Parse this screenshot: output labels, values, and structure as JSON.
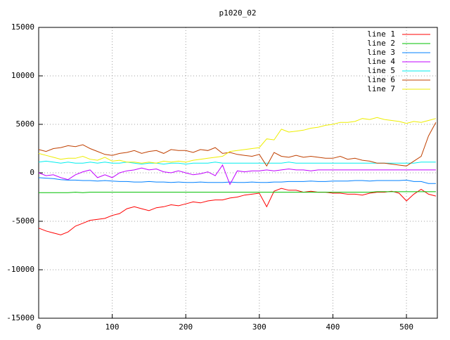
{
  "chart_data": {
    "type": "line",
    "title": "p1020_02",
    "x": [
      0,
      10,
      20,
      30,
      40,
      50,
      60,
      70,
      80,
      90,
      100,
      110,
      120,
      130,
      140,
      150,
      160,
      170,
      180,
      190,
      200,
      210,
      220,
      230,
      240,
      250,
      260,
      270,
      280,
      290,
      300,
      310,
      320,
      330,
      340,
      350,
      360,
      370,
      380,
      390,
      400,
      410,
      420,
      430,
      440,
      450,
      460,
      470,
      480,
      490,
      500,
      510,
      520,
      530,
      540
    ],
    "xlim": [
      0,
      542
    ],
    "xticks": [
      0,
      100,
      200,
      300,
      400,
      500
    ],
    "ylim": [
      -15000,
      15000
    ],
    "yticks": [
      -15000,
      -10000,
      -5000,
      0,
      5000,
      10000,
      15000
    ],
    "grid": true,
    "legend": "top-right",
    "series": [
      {
        "name": "line 1",
        "color": "#ff0000",
        "values": [
          -5700,
          -6000,
          -6200,
          -6400,
          -6100,
          -5500,
          -5200,
          -4900,
          -4800,
          -4700,
          -4400,
          -4200,
          -3700,
          -3500,
          -3700,
          -3900,
          -3600,
          -3500,
          -3300,
          -3400,
          -3200,
          -3000,
          -3100,
          -2900,
          -2800,
          -2800,
          -2600,
          -2500,
          -2300,
          -2200,
          -2100,
          -3500,
          -1900,
          -1600,
          -1800,
          -1800,
          -2000,
          -1900,
          -2000,
          -2000,
          -2100,
          -2100,
          -2200,
          -2200,
          -2300,
          -2100,
          -2000,
          -2000,
          -1900,
          -2100,
          -2900,
          -2200,
          -1700,
          -2200,
          -2400
        ]
      },
      {
        "name": "line 2",
        "color": "#00c000",
        "values": [
          -2050,
          -2050,
          -2050,
          -2050,
          -2050,
          -2000,
          -2050,
          -2000,
          -2000,
          -2000,
          -2000,
          -2000,
          -2000,
          -2000,
          -2000,
          -2000,
          -2000,
          -2000,
          -2000,
          -2000,
          -2000,
          -2000,
          -2000,
          -2000,
          -2000,
          -2000,
          -2000,
          -2000,
          -2000,
          -2000,
          -2000,
          -2000,
          -2000,
          -2000,
          -2000,
          -2000,
          -2000,
          -2000,
          -2000,
          -2000,
          -2000,
          -2000,
          -2000,
          -2000,
          -2000,
          -2000,
          -1950,
          -1950,
          -1950,
          -1950,
          -1950,
          -1950,
          -1950,
          -1950,
          -1950
        ]
      },
      {
        "name": "line 3",
        "color": "#0080ff",
        "values": [
          -500,
          -550,
          -600,
          -700,
          -750,
          -750,
          -800,
          -800,
          -850,
          -800,
          -850,
          -900,
          -900,
          -950,
          -950,
          -900,
          -950,
          -950,
          -1000,
          -950,
          -1000,
          -1000,
          -950,
          -1000,
          -1000,
          -1000,
          -950,
          -1000,
          -1000,
          -950,
          -1000,
          -1000,
          -950,
          -950,
          -900,
          -900,
          -900,
          -850,
          -900,
          -900,
          -850,
          -850,
          -850,
          -800,
          -800,
          -850,
          -800,
          -800,
          -800,
          -800,
          -750,
          -900,
          -900,
          -1100,
          -1100
        ]
      },
      {
        "name": "line 4",
        "color": "#c000ff",
        "values": [
          0,
          -300,
          -200,
          -500,
          -700,
          -200,
          100,
          300,
          -500,
          -200,
          -500,
          0,
          200,
          300,
          500,
          300,
          400,
          100,
          0,
          200,
          0,
          -200,
          -100,
          100,
          -300,
          800,
          -1200,
          200,
          100,
          200,
          200,
          300,
          200,
          300,
          400,
          300,
          300,
          200,
          300,
          300,
          300,
          300,
          300,
          300,
          300,
          300,
          300,
          300,
          300,
          300,
          300,
          300,
          300,
          300,
          300
        ]
      },
      {
        "name": "line 5",
        "color": "#00eeee",
        "values": [
          1100,
          1200,
          1100,
          1000,
          1100,
          1000,
          1000,
          1100,
          1000,
          1100,
          1000,
          1000,
          1100,
          1000,
          900,
          1000,
          1000,
          900,
          1000,
          1000,
          900,
          1000,
          1000,
          1000,
          1100,
          1000,
          1000,
          1000,
          1000,
          1000,
          1000,
          1000,
          1000,
          1000,
          1100,
          1000,
          1000,
          1000,
          1000,
          1000,
          1000,
          1000,
          1000,
          1000,
          1000,
          1000,
          1000,
          1000,
          1000,
          1000,
          1000,
          1000,
          1100,
          1100,
          1100
        ]
      },
      {
        "name": "line 6",
        "color": "#c04000",
        "values": [
          2400,
          2200,
          2500,
          2600,
          2800,
          2700,
          2900,
          2500,
          2200,
          1900,
          1800,
          2000,
          2100,
          2300,
          2000,
          2200,
          2300,
          2000,
          2400,
          2300,
          2300,
          2100,
          2400,
          2300,
          2600,
          2000,
          2100,
          1900,
          1800,
          1700,
          1900,
          700,
          2100,
          1700,
          1600,
          1800,
          1600,
          1700,
          1600,
          1500,
          1500,
          1700,
          1400,
          1500,
          1300,
          1200,
          1000,
          1000,
          900,
          800,
          700,
          1200,
          1700,
          3800,
          5200
        ]
      },
      {
        "name": "line 7",
        "color": "#eeee00",
        "values": [
          2000,
          1800,
          1600,
          1400,
          1500,
          1500,
          1700,
          1400,
          1300,
          1600,
          1200,
          1300,
          1100,
          1100,
          1000,
          1100,
          1000,
          1200,
          1100,
          1200,
          1100,
          1300,
          1400,
          1500,
          1600,
          1700,
          2200,
          2300,
          2400,
          2500,
          2600,
          3500,
          3400,
          4500,
          4200,
          4300,
          4400,
          4600,
          4700,
          4900,
          5000,
          5200,
          5200,
          5300,
          5600,
          5500,
          5700,
          5500,
          5400,
          5300,
          5100,
          5300,
          5200,
          5400,
          5600
        ]
      }
    ]
  }
}
